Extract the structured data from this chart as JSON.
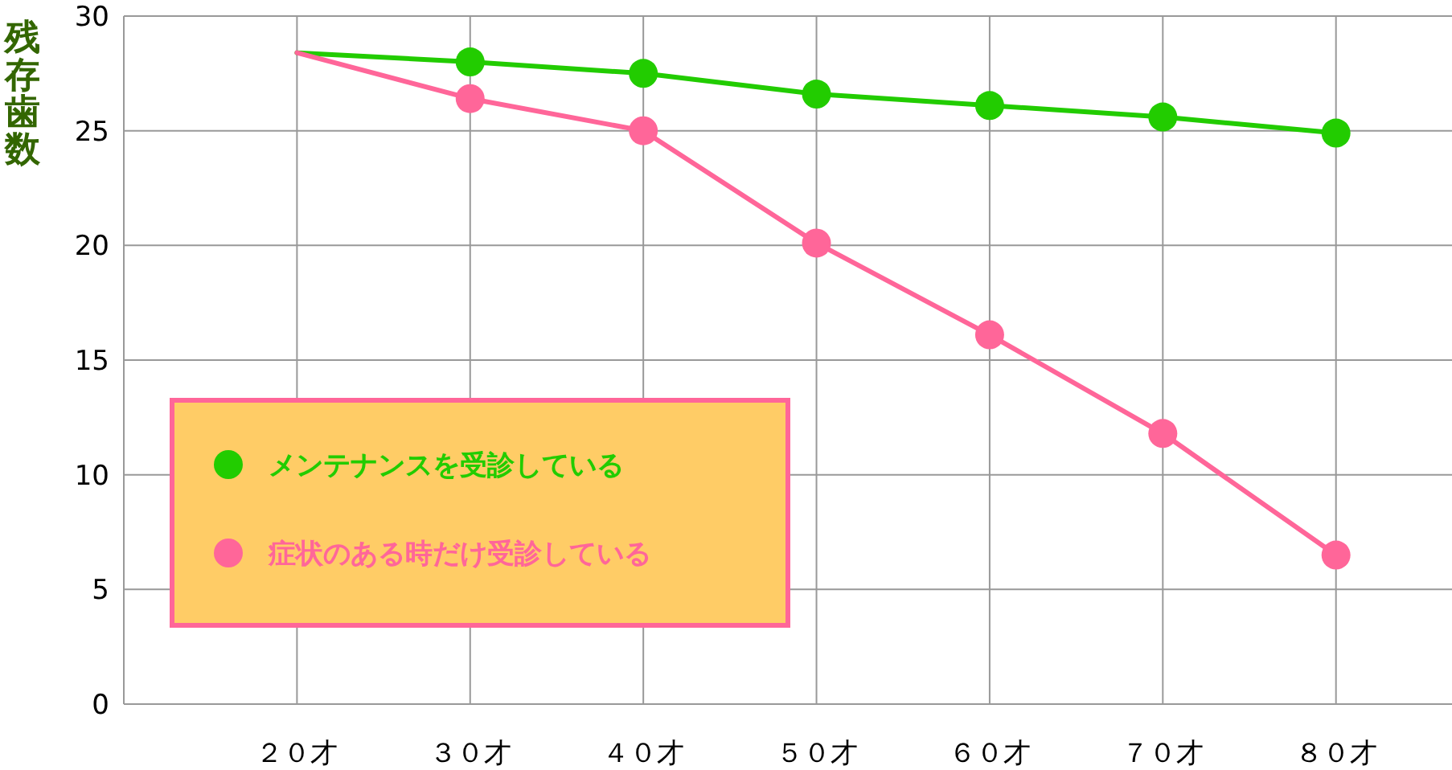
{
  "chart_data": {
    "type": "line",
    "ylabel": "残存歯数",
    "x": [
      20,
      30,
      40,
      50,
      60,
      70,
      80
    ],
    "xlim": [
      10,
      86.7
    ],
    "xticks": [
      {
        "value": 20,
        "label": "２０才"
      },
      {
        "value": 30,
        "label": "３０才"
      },
      {
        "value": 40,
        "label": "４０才"
      },
      {
        "value": 50,
        "label": "５０才"
      },
      {
        "value": 60,
        "label": "６０才"
      },
      {
        "value": 70,
        "label": "７０才"
      },
      {
        "value": 80,
        "label": "８０才"
      }
    ],
    "ylim": [
      0,
      30
    ],
    "yticks": [
      0,
      5,
      10,
      15,
      20,
      25,
      30
    ],
    "grid": true,
    "legend": "left",
    "marker": "circle",
    "line_style": "solid",
    "series": [
      {
        "marker": "none",
        "color": "#22cc00",
        "values": [
          28.4,
          28.0,
          27.5,
          26.6,
          26.1,
          25.6,
          24.9
        ]
      },
      {
        "marker": "none",
        "color": "#ff6699",
        "values": [
          28.4,
          26.4,
          25.0,
          20.1,
          16.1,
          11.8,
          6.5
        ]
      },
      {
        "type": "scatter",
        "name": "メンテナンスを受診している",
        "color": "#22cc00",
        "x": [
          30,
          40,
          50,
          60,
          70,
          80
        ],
        "values": [
          28.0,
          27.5,
          26.6,
          26.1,
          25.6,
          24.9
        ]
      },
      {
        "type": "scatter",
        "name": "症状のある時だけ受診している",
        "color": "#ff6699",
        "x": [
          30,
          40,
          50,
          60,
          70,
          80
        ],
        "values": [
          26.4,
          25.0,
          20.1,
          16.1,
          11.8,
          6.5
        ]
      }
    ]
  }
}
